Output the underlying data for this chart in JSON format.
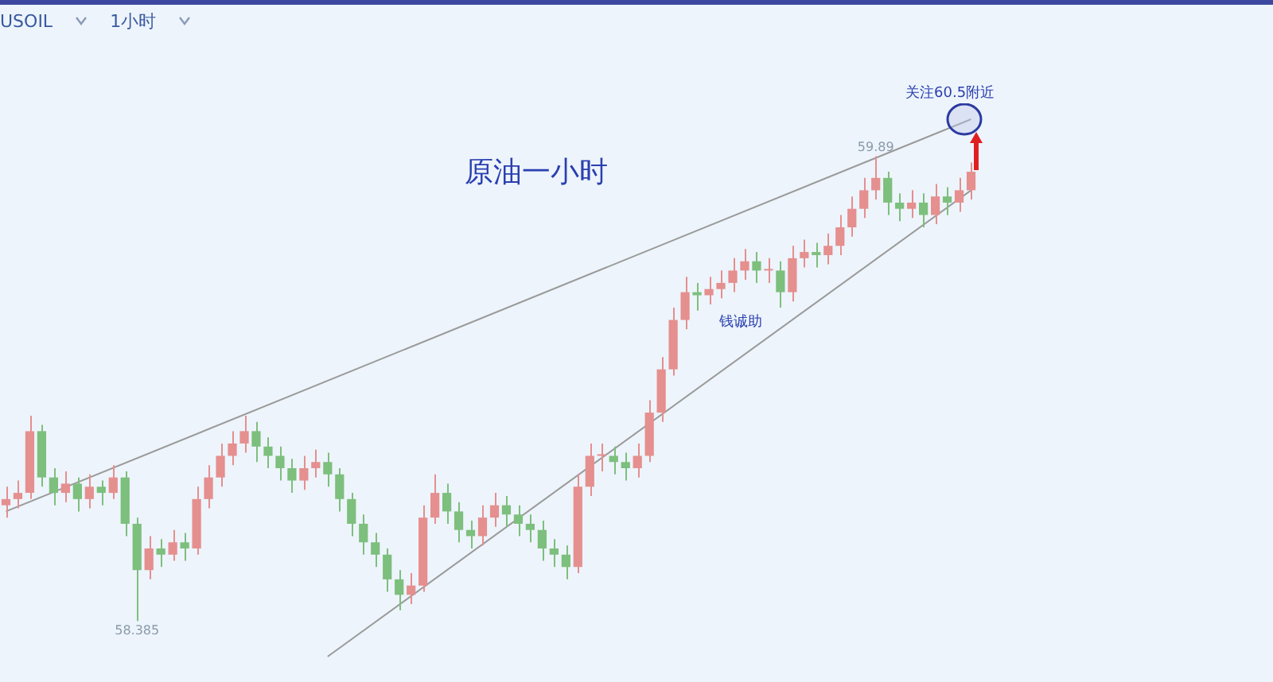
{
  "chart_data": {
    "type": "candlestick",
    "title": "原油一小时",
    "annotations": [
      "USOIL",
      "1小时",
      "59.89",
      "58.385",
      "钱诚助",
      "关注60.5附近"
    ],
    "categories": [
      null,
      null,
      null,
      null,
      null,
      null,
      null,
      null,
      null,
      null,
      null,
      null,
      null,
      null,
      null,
      null,
      null,
      null,
      null,
      null,
      null,
      null,
      null,
      null,
      null,
      null,
      null,
      null,
      null,
      null,
      null,
      null,
      null,
      null,
      null,
      null,
      null,
      null,
      null,
      null,
      null,
      null,
      null,
      null,
      null,
      null,
      null,
      null,
      null,
      null,
      null,
      null,
      null,
      null,
      null,
      null,
      null,
      null,
      null,
      null,
      null,
      null,
      null,
      null,
      null,
      null,
      null,
      null,
      null,
      null,
      null,
      null,
      null,
      null,
      null,
      null,
      null,
      null,
      null,
      null,
      null,
      null
    ],
    "ohlc": [
      [
        58.76,
        58.82,
        58.72,
        58.78
      ],
      [
        58.78,
        58.84,
        58.75,
        58.8
      ],
      [
        58.8,
        59.05,
        58.78,
        59.0
      ],
      [
        59.0,
        59.02,
        58.82,
        58.85
      ],
      [
        58.85,
        58.88,
        58.76,
        58.8
      ],
      [
        58.8,
        58.87,
        58.77,
        58.83
      ],
      [
        58.83,
        58.85,
        58.74,
        58.78
      ],
      [
        58.78,
        58.86,
        58.75,
        58.82
      ],
      [
        58.82,
        58.84,
        58.76,
        58.8
      ],
      [
        58.8,
        58.89,
        58.78,
        58.85
      ],
      [
        58.85,
        58.87,
        58.66,
        58.7
      ],
      [
        58.7,
        58.72,
        58.385,
        58.55
      ],
      [
        58.55,
        58.66,
        58.52,
        58.62
      ],
      [
        58.62,
        58.65,
        58.56,
        58.6
      ],
      [
        58.6,
        58.68,
        58.58,
        58.64
      ],
      [
        58.64,
        58.67,
        58.58,
        58.62
      ],
      [
        58.62,
        58.82,
        58.6,
        58.78
      ],
      [
        58.78,
        58.89,
        58.75,
        58.85
      ],
      [
        58.85,
        58.96,
        58.82,
        58.92
      ],
      [
        58.92,
        59.0,
        58.89,
        58.96
      ],
      [
        58.96,
        59.05,
        58.93,
        59.0
      ],
      [
        59.0,
        59.03,
        58.9,
        58.95
      ],
      [
        58.95,
        58.98,
        58.88,
        58.92
      ],
      [
        58.92,
        58.95,
        58.84,
        58.88
      ],
      [
        58.88,
        58.91,
        58.8,
        58.84
      ],
      [
        58.84,
        58.92,
        58.81,
        58.88
      ],
      [
        58.88,
        58.94,
        58.85,
        58.9
      ],
      [
        58.9,
        58.93,
        58.82,
        58.86
      ],
      [
        58.86,
        58.88,
        58.74,
        58.78
      ],
      [
        58.78,
        58.8,
        58.66,
        58.7
      ],
      [
        58.7,
        58.73,
        58.6,
        58.64
      ],
      [
        58.64,
        58.67,
        58.56,
        58.6
      ],
      [
        58.6,
        58.62,
        58.48,
        58.52
      ],
      [
        58.52,
        58.55,
        58.42,
        58.47
      ],
      [
        58.47,
        58.54,
        58.44,
        58.5
      ],
      [
        58.5,
        58.76,
        58.48,
        58.72
      ],
      [
        58.72,
        58.86,
        58.7,
        58.8
      ],
      [
        58.8,
        58.83,
        58.7,
        58.74
      ],
      [
        58.74,
        58.77,
        58.64,
        58.68
      ],
      [
        58.68,
        58.71,
        58.62,
        58.66
      ],
      [
        58.66,
        58.76,
        58.63,
        58.72
      ],
      [
        58.72,
        58.8,
        58.69,
        58.76
      ],
      [
        58.76,
        58.79,
        58.69,
        58.73
      ],
      [
        58.73,
        58.76,
        58.66,
        58.7
      ],
      [
        58.7,
        58.73,
        58.64,
        58.68
      ],
      [
        58.68,
        58.71,
        58.58,
        58.62
      ],
      [
        58.62,
        58.65,
        58.56,
        58.6
      ],
      [
        58.6,
        58.63,
        58.52,
        58.56
      ],
      [
        58.56,
        58.86,
        58.54,
        58.82
      ],
      [
        58.82,
        58.96,
        58.79,
        58.92
      ],
      [
        58.92,
        58.96,
        58.87,
        58.92
      ],
      [
        58.92,
        58.95,
        58.86,
        58.9
      ],
      [
        58.9,
        58.93,
        58.84,
        58.88
      ],
      [
        58.88,
        58.96,
        58.85,
        58.92
      ],
      [
        58.92,
        59.1,
        58.9,
        59.06
      ],
      [
        59.06,
        59.24,
        59.03,
        59.2
      ],
      [
        59.2,
        59.4,
        59.18,
        59.36
      ],
      [
        59.36,
        59.5,
        59.33,
        59.45
      ],
      [
        59.45,
        59.48,
        59.39,
        59.44
      ],
      [
        59.44,
        59.5,
        59.41,
        59.46
      ],
      [
        59.46,
        59.52,
        59.43,
        59.48
      ],
      [
        59.48,
        59.56,
        59.45,
        59.52
      ],
      [
        59.52,
        59.59,
        59.49,
        59.55
      ],
      [
        59.55,
        59.58,
        59.48,
        59.52
      ],
      [
        59.52,
        59.56,
        59.48,
        59.52
      ],
      [
        59.52,
        59.55,
        59.4,
        59.45
      ],
      [
        59.45,
        59.6,
        59.42,
        59.56
      ],
      [
        59.56,
        59.62,
        59.53,
        59.58
      ],
      [
        59.58,
        59.61,
        59.53,
        59.57
      ],
      [
        59.57,
        59.64,
        59.54,
        59.6
      ],
      [
        59.6,
        59.7,
        59.57,
        59.66
      ],
      [
        59.66,
        59.76,
        59.63,
        59.72
      ],
      [
        59.72,
        59.82,
        59.69,
        59.78
      ],
      [
        59.78,
        59.89,
        59.75,
        59.82
      ],
      [
        59.82,
        59.84,
        59.7,
        59.74
      ],
      [
        59.74,
        59.77,
        59.68,
        59.72
      ],
      [
        59.72,
        59.78,
        59.69,
        59.74
      ],
      [
        59.74,
        59.77,
        59.66,
        59.7
      ],
      [
        59.7,
        59.8,
        59.67,
        59.76
      ],
      [
        59.76,
        59.79,
        59.7,
        59.74
      ],
      [
        59.74,
        59.82,
        59.71,
        59.78
      ],
      [
        59.78,
        59.87,
        59.75,
        59.84
      ]
    ],
    "series": [
      {
        "type": "line",
        "color": "#9a9a9a",
        "values": [
          58.74,
          null,
          null,
          null,
          null,
          null,
          null,
          null,
          null,
          null,
          null,
          null,
          null,
          null,
          null,
          null,
          null,
          null,
          null,
          null,
          null,
          null,
          null,
          null,
          null,
          null,
          null,
          null,
          null,
          null,
          null,
          null,
          null,
          null,
          null,
          null,
          null,
          null,
          null,
          null,
          null,
          null,
          null,
          null,
          null,
          null,
          null,
          null,
          null,
          null,
          null,
          null,
          null,
          null,
          null,
          null,
          null,
          null,
          null,
          null,
          null,
          null,
          null,
          null,
          null,
          null,
          null,
          null,
          null,
          null,
          null,
          null,
          null,
          null,
          null,
          null,
          null,
          null,
          null,
          null,
          null,
          60.01
        ]
      },
      {
        "type": "line",
        "color": "#9a9a9a",
        "values": [
          null,
          null,
          null,
          null,
          null,
          null,
          null,
          null,
          null,
          null,
          null,
          null,
          null,
          null,
          null,
          null,
          null,
          null,
          null,
          null,
          null,
          null,
          null,
          null,
          null,
          null,
          null,
          58.27,
          null,
          null,
          null,
          null,
          null,
          null,
          null,
          null,
          null,
          null,
          null,
          null,
          null,
          null,
          null,
          null,
          null,
          null,
          null,
          null,
          null,
          null,
          null,
          null,
          null,
          null,
          null,
          null,
          null,
          null,
          null,
          null,
          null,
          null,
          null,
          null,
          null,
          null,
          null,
          null,
          null,
          null,
          null,
          null,
          null,
          null,
          null,
          null,
          null,
          null,
          null,
          null,
          null,
          59.78
        ]
      }
    ],
    "tick_labels": false,
    "legend": false,
    "marker": "none"
  }
}
